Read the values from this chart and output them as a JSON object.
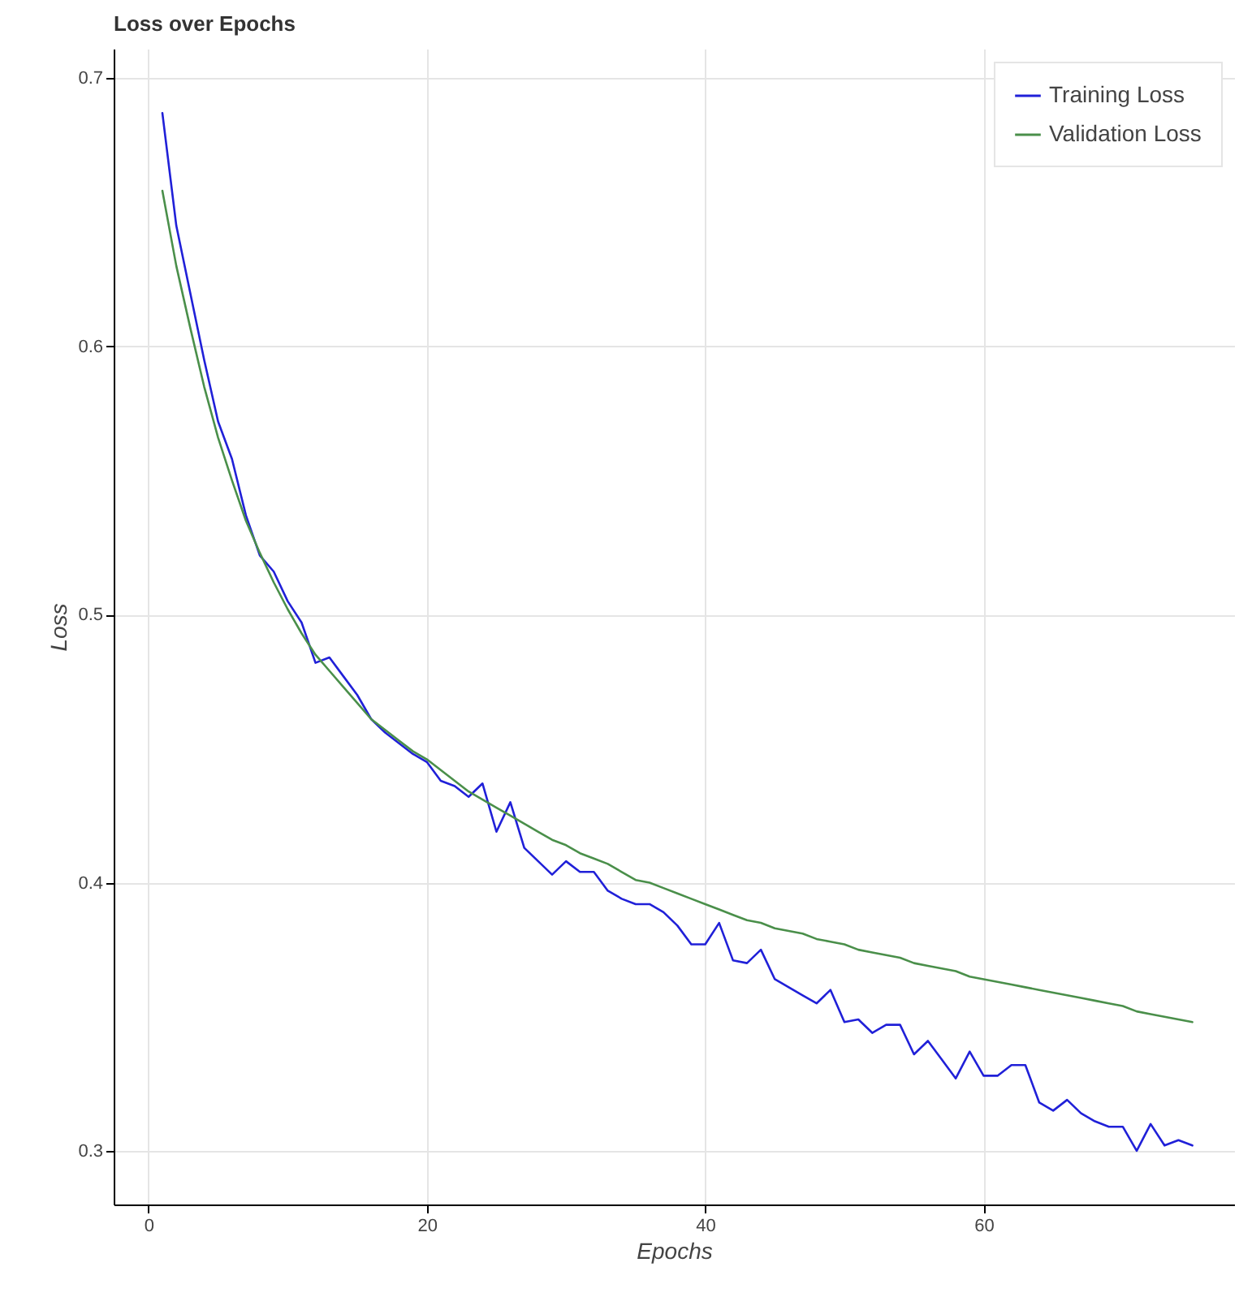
{
  "chart_data": {
    "type": "line",
    "title": "Loss over Epochs",
    "xlabel": "Epochs",
    "ylabel": "Loss",
    "x": [
      1,
      2,
      3,
      4,
      5,
      6,
      7,
      8,
      9,
      10,
      11,
      12,
      13,
      14,
      15,
      16,
      17,
      18,
      19,
      20,
      21,
      22,
      23,
      24,
      25,
      26,
      27,
      28,
      29,
      30,
      31,
      32,
      33,
      34,
      35,
      36,
      37,
      38,
      39,
      40,
      41,
      42,
      43,
      44,
      45,
      46,
      47,
      48,
      49,
      50,
      51,
      52,
      53,
      54,
      55,
      56,
      57,
      58,
      59,
      60,
      61,
      62,
      63,
      64,
      65,
      66,
      67,
      68,
      69,
      70,
      71,
      72,
      73,
      74,
      75
    ],
    "series": [
      {
        "name": "Training Loss",
        "color": "#2020d8",
        "values": [
          0.687,
          0.645,
          0.62,
          0.595,
          0.572,
          0.558,
          0.537,
          0.522,
          0.516,
          0.505,
          0.497,
          0.482,
          0.484,
          0.477,
          0.47,
          0.461,
          0.456,
          0.452,
          0.448,
          0.445,
          0.438,
          0.436,
          0.432,
          0.437,
          0.419,
          0.43,
          0.413,
          0.408,
          0.403,
          0.408,
          0.404,
          0.404,
          0.397,
          0.394,
          0.392,
          0.392,
          0.389,
          0.384,
          0.377,
          0.377,
          0.385,
          0.371,
          0.37,
          0.375,
          0.364,
          0.361,
          0.358,
          0.355,
          0.36,
          0.348,
          0.349,
          0.344,
          0.347,
          0.347,
          0.336,
          0.341,
          0.334,
          0.327,
          0.337,
          0.328,
          0.328,
          0.332,
          0.332,
          0.318,
          0.315,
          0.319,
          0.314,
          0.311,
          0.309,
          0.309,
          0.3,
          0.31,
          0.302,
          0.304,
          0.302
        ]
      },
      {
        "name": "Validation Loss",
        "color": "#4a8f4a",
        "values": [
          0.658,
          0.63,
          0.607,
          0.585,
          0.566,
          0.55,
          0.535,
          0.523,
          0.512,
          0.502,
          0.493,
          0.485,
          0.479,
          0.473,
          0.467,
          0.461,
          0.457,
          0.453,
          0.449,
          0.446,
          0.442,
          0.438,
          0.434,
          0.431,
          0.428,
          0.425,
          0.422,
          0.419,
          0.416,
          0.414,
          0.411,
          0.409,
          0.407,
          0.404,
          0.401,
          0.4,
          0.398,
          0.396,
          0.394,
          0.392,
          0.39,
          0.388,
          0.386,
          0.385,
          0.383,
          0.382,
          0.381,
          0.379,
          0.378,
          0.377,
          0.375,
          0.374,
          0.373,
          0.372,
          0.37,
          0.369,
          0.368,
          0.367,
          0.365,
          0.364,
          0.363,
          0.362,
          0.361,
          0.36,
          0.359,
          0.358,
          0.357,
          0.356,
          0.355,
          0.354,
          0.352,
          0.351,
          0.35,
          0.349,
          0.348
        ]
      }
    ],
    "xlim": [
      -2.5,
      78
    ],
    "ylim": [
      0.28,
      0.711
    ],
    "xticks": [
      0,
      20,
      40,
      60
    ],
    "yticks": [
      0.3,
      0.4,
      0.5,
      0.6,
      0.7
    ],
    "grid": true,
    "legend": "top right",
    "marker": "none",
    "line_style": "solid"
  }
}
